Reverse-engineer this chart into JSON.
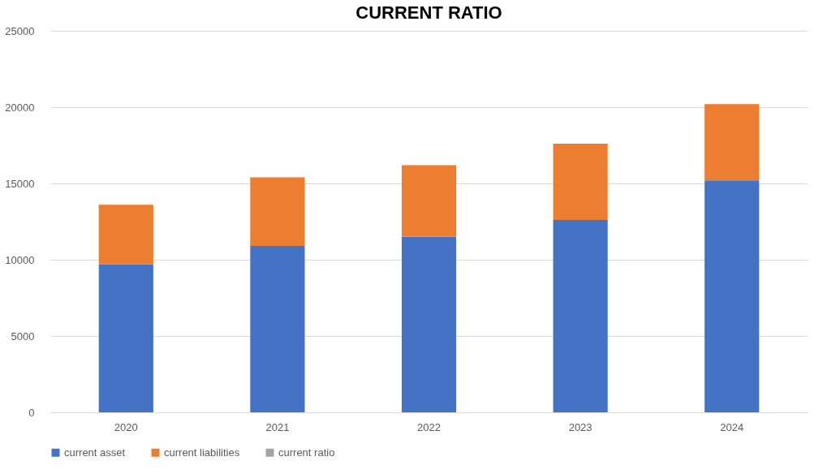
{
  "chart_data": {
    "type": "bar",
    "title": "CURRENT RATIO",
    "stacked": true,
    "categories": [
      "2020",
      "2021",
      "2022",
      "2023",
      "2024"
    ],
    "series": [
      {
        "name": "current asset",
        "color": "#4472c4",
        "values": [
          9700,
          10900,
          11500,
          12600,
          15200
        ]
      },
      {
        "name": "current liabilities",
        "color": "#ed7d31",
        "values": [
          3900,
          4500,
          4700,
          5000,
          5000
        ]
      },
      {
        "name": "current ratio",
        "color": "#a5a5a5",
        "values": [
          null,
          null,
          null,
          null,
          null
        ]
      }
    ],
    "ylim": [
      0,
      25000
    ],
    "yticks": [
      0,
      5000,
      10000,
      15000,
      20000,
      25000
    ],
    "grid": "y",
    "legend": "bottom"
  }
}
